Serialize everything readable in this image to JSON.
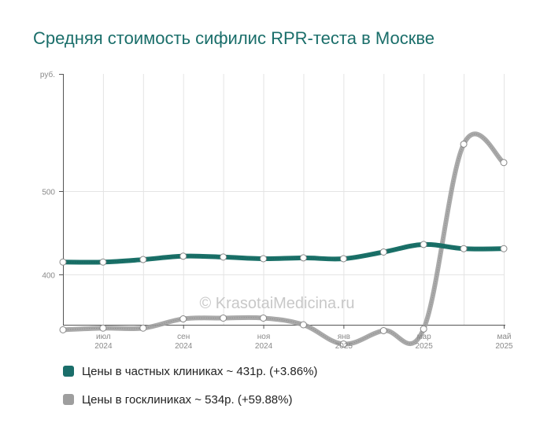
{
  "title": "Средняя стоимость сифилис RPR-теста в Москве",
  "watermark": "© KrasotaiMedicina.ru",
  "chart_data": {
    "type": "line",
    "ylabel": "руб.",
    "ylim": [
      340,
      640
    ],
    "yticks": [
      400,
      500
    ],
    "xticks": [
      {
        "month": "июл",
        "year": "2024"
      },
      {
        "month": "сен",
        "year": "2024"
      },
      {
        "month": "ноя",
        "year": "2024"
      },
      {
        "month": "янв",
        "year": "2025"
      },
      {
        "month": "мар",
        "year": "2025"
      },
      {
        "month": "май",
        "year": "2025"
      }
    ],
    "x": [
      "2024-06",
      "2024-07",
      "2024-08",
      "2024-09",
      "2024-10",
      "2024-11",
      "2024-12",
      "2025-01",
      "2025-02",
      "2025-03",
      "2025-04",
      "2025-05"
    ],
    "series": [
      {
        "name": "Цены в частных клиниках",
        "color": "#1a7068",
        "values": [
          415,
          415,
          418,
          422,
          421,
          419,
          420,
          419,
          427,
          436,
          431,
          431
        ]
      },
      {
        "name": "Цены в госклиниках",
        "color": "#a0a0a0",
        "values": [
          334,
          336,
          336,
          347,
          348,
          348,
          340,
          317,
          333,
          335,
          556,
          534
        ]
      }
    ],
    "grid": true
  },
  "legend": [
    {
      "label": "Цены в частных клиниках ~ 431р. (+3.86%)",
      "color": "#1a6e6a"
    },
    {
      "label": "Цены в госклиниках ~ 534р. (+59.88%)",
      "color": "#9e9e9e"
    }
  ]
}
